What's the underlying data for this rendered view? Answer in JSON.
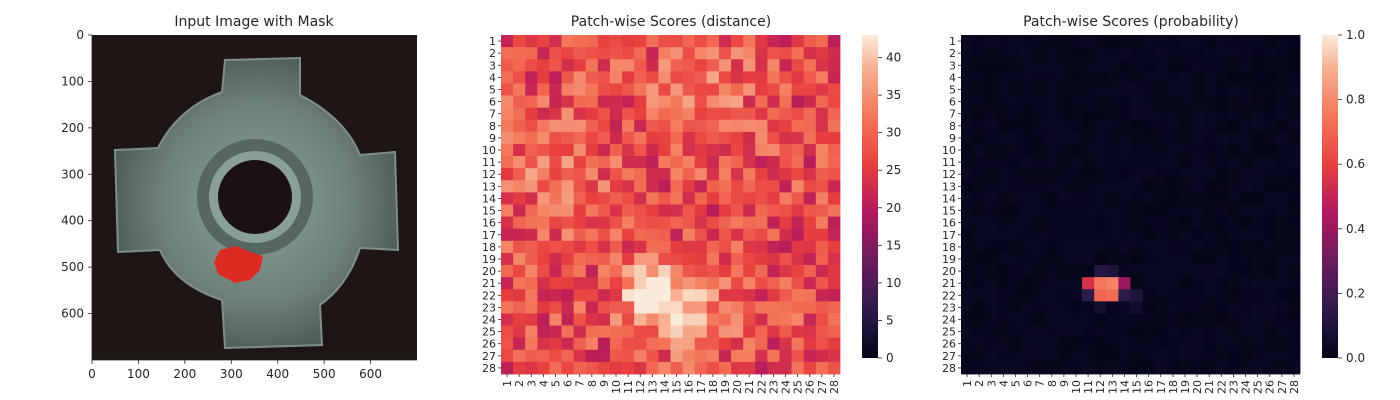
{
  "chart_data": [
    {
      "type": "image",
      "title": "Input Image with Mask",
      "x_ticks": [
        "0",
        "100",
        "200",
        "300",
        "400",
        "500",
        "600"
      ],
      "y_ticks": [
        "0",
        "100",
        "200",
        "300",
        "400",
        "500",
        "600"
      ],
      "xlim": [
        0,
        700
      ],
      "ylim": [
        700,
        0
      ],
      "mask": {
        "x": 295,
        "y": 490,
        "color": "#e0261c"
      }
    },
    {
      "type": "heatmap",
      "title": "Patch-wise Scores (distance)",
      "x_ticks": [
        "1",
        "2",
        "3",
        "4",
        "5",
        "6",
        "7",
        "8",
        "9",
        "10",
        "11",
        "12",
        "13",
        "14",
        "15",
        "16",
        "17",
        "18",
        "19",
        "20",
        "21",
        "22",
        "23",
        "24",
        "25",
        "26",
        "27",
        "28"
      ],
      "y_ticks": [
        "1",
        "2",
        "3",
        "4",
        "5",
        "6",
        "7",
        "8",
        "9",
        "10",
        "11",
        "12",
        "13",
        "14",
        "15",
        "16",
        "17",
        "18",
        "19",
        "20",
        "21",
        "22",
        "23",
        "24",
        "25",
        "26",
        "27",
        "28"
      ],
      "colorbar_ticks": [
        "0",
        "5",
        "10",
        "15",
        "20",
        "25",
        "30",
        "35",
        "40"
      ],
      "vmin": 0,
      "vmax": 43,
      "colormap": "rocket",
      "grid_size": 28
    },
    {
      "type": "heatmap",
      "title": "Patch-wise Scores (probability)",
      "x_ticks": [
        "1",
        "2",
        "3",
        "4",
        "5",
        "6",
        "7",
        "8",
        "9",
        "10",
        "11",
        "12",
        "13",
        "14",
        "15",
        "16",
        "17",
        "18",
        "19",
        "20",
        "21",
        "22",
        "23",
        "24",
        "25",
        "26",
        "27",
        "28"
      ],
      "y_ticks": [
        "1",
        "2",
        "3",
        "4",
        "5",
        "6",
        "7",
        "8",
        "9",
        "10",
        "11",
        "12",
        "13",
        "14",
        "15",
        "16",
        "17",
        "18",
        "19",
        "20",
        "21",
        "22",
        "23",
        "24",
        "25",
        "26",
        "27",
        "28"
      ],
      "colorbar_ticks": [
        "0.0",
        "0.2",
        "0.4",
        "0.6",
        "0.8",
        "1.0"
      ],
      "vmin": 0,
      "vmax": 1,
      "colormap": "rocket",
      "grid_size": 28,
      "hotspot_cells": [
        {
          "row": 21,
          "col": 11,
          "value": 0.55
        },
        {
          "row": 21,
          "col": 12,
          "value": 0.75
        },
        {
          "row": 21,
          "col": 13,
          "value": 0.78
        },
        {
          "row": 21,
          "col": 14,
          "value": 0.4
        },
        {
          "row": 20,
          "col": 12,
          "value": 0.12
        },
        {
          "row": 20,
          "col": 13,
          "value": 0.1
        },
        {
          "row": 22,
          "col": 12,
          "value": 0.7
        },
        {
          "row": 22,
          "col": 13,
          "value": 0.72
        },
        {
          "row": 22,
          "col": 11,
          "value": 0.15
        },
        {
          "row": 22,
          "col": 14,
          "value": 0.15
        },
        {
          "row": 22,
          "col": 15,
          "value": 0.1
        },
        {
          "row": 23,
          "col": 12,
          "value": 0.06
        },
        {
          "row": 23,
          "col": 15,
          "value": 0.06
        }
      ]
    }
  ]
}
